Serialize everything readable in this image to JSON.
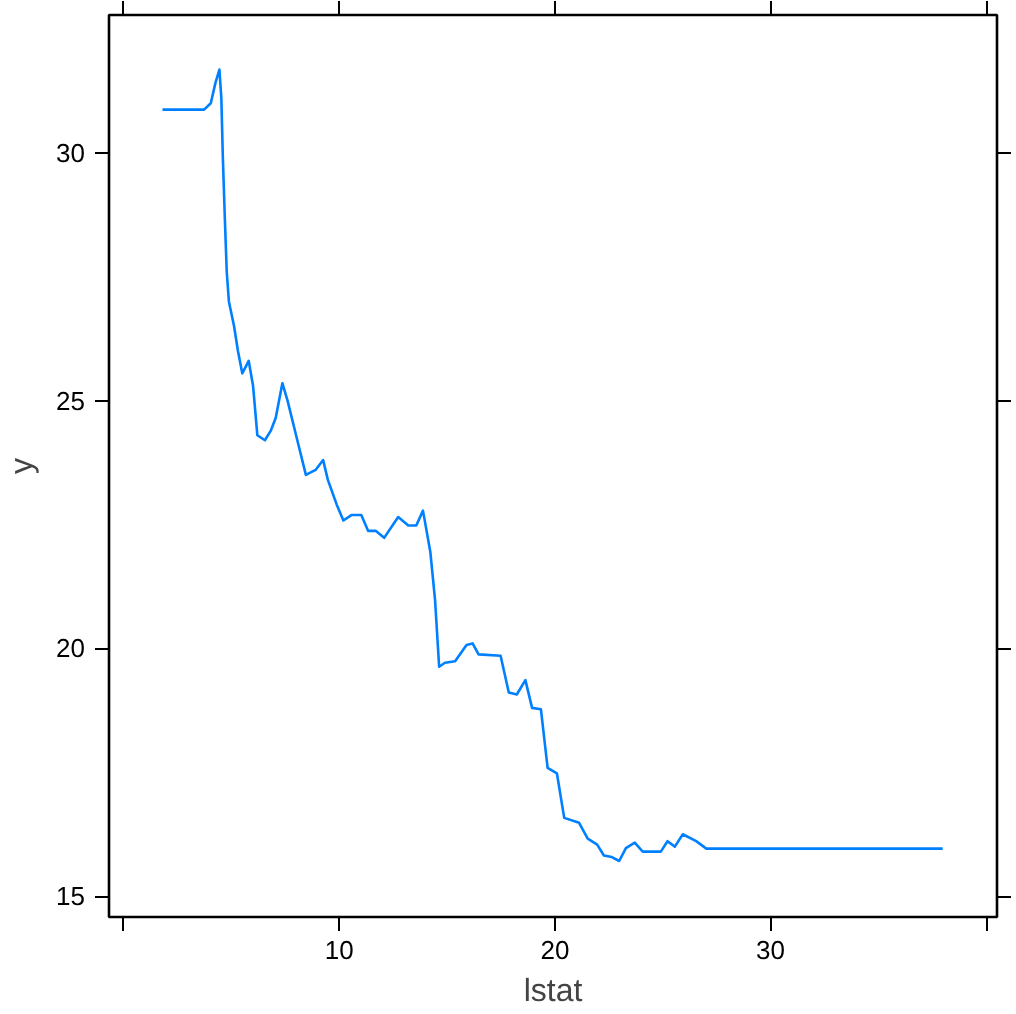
{
  "chart_data": {
    "type": "line",
    "xlabel": "lstat",
    "ylabel": "y",
    "xlim": [
      -0.68,
      40.5
    ],
    "ylim": [
      14.58,
      32.78
    ],
    "xticks": [
      {
        "value": 0,
        "label": null
      },
      10,
      20,
      30,
      {
        "value": 40,
        "label": null
      }
    ],
    "yticks": [
      15,
      20,
      25,
      30
    ],
    "grid": false,
    "series": [
      {
        "color": "#0080ff",
        "x": [
          1.8,
          3.73,
          4.04,
          4.25,
          4.44,
          4.53,
          4.6,
          4.69,
          4.78,
          4.88,
          5.12,
          5.3,
          5.5,
          5.8,
          6.0,
          6.2,
          6.55,
          6.83,
          7.05,
          7.36,
          7.6,
          8.07,
          8.45,
          8.9,
          9.25,
          9.47,
          9.88,
          10.19,
          10.56,
          11.02,
          11.34,
          11.7,
          12.08,
          12.73,
          13.2,
          13.57,
          13.88,
          14.22,
          14.44,
          14.63,
          14.9,
          15.37,
          15.9,
          16.18,
          16.46,
          17.48,
          17.86,
          18.23,
          18.63,
          18.94,
          19.35,
          19.66,
          20.09,
          20.43,
          21.12,
          21.52,
          21.96,
          22.27,
          22.64,
          22.98,
          23.29,
          23.7,
          24.07,
          24.91,
          25.22,
          25.56,
          25.93,
          26.55,
          27.02,
          37.98
        ],
        "values": [
          30.87,
          30.87,
          31.0,
          31.4,
          31.68,
          31.1,
          29.9,
          28.7,
          27.6,
          27.0,
          26.5,
          26.0,
          25.55,
          25.8,
          25.3,
          24.3,
          24.2,
          24.4,
          24.65,
          25.35,
          25.0,
          24.17,
          23.5,
          23.6,
          23.8,
          23.4,
          22.9,
          22.58,
          22.69,
          22.69,
          22.37,
          22.37,
          22.23,
          22.65,
          22.48,
          22.48,
          22.78,
          21.95,
          20.98,
          19.63,
          19.71,
          19.74,
          20.07,
          20.1,
          19.88,
          19.85,
          19.11,
          19.07,
          19.36,
          18.8,
          18.77,
          17.59,
          17.48,
          16.58,
          16.48,
          16.16,
          16.04,
          15.82,
          15.79,
          15.71,
          15.97,
          16.08,
          15.9,
          15.9,
          16.11,
          16.0,
          16.25,
          16.11,
          15.96,
          15.96
        ]
      }
    ]
  }
}
